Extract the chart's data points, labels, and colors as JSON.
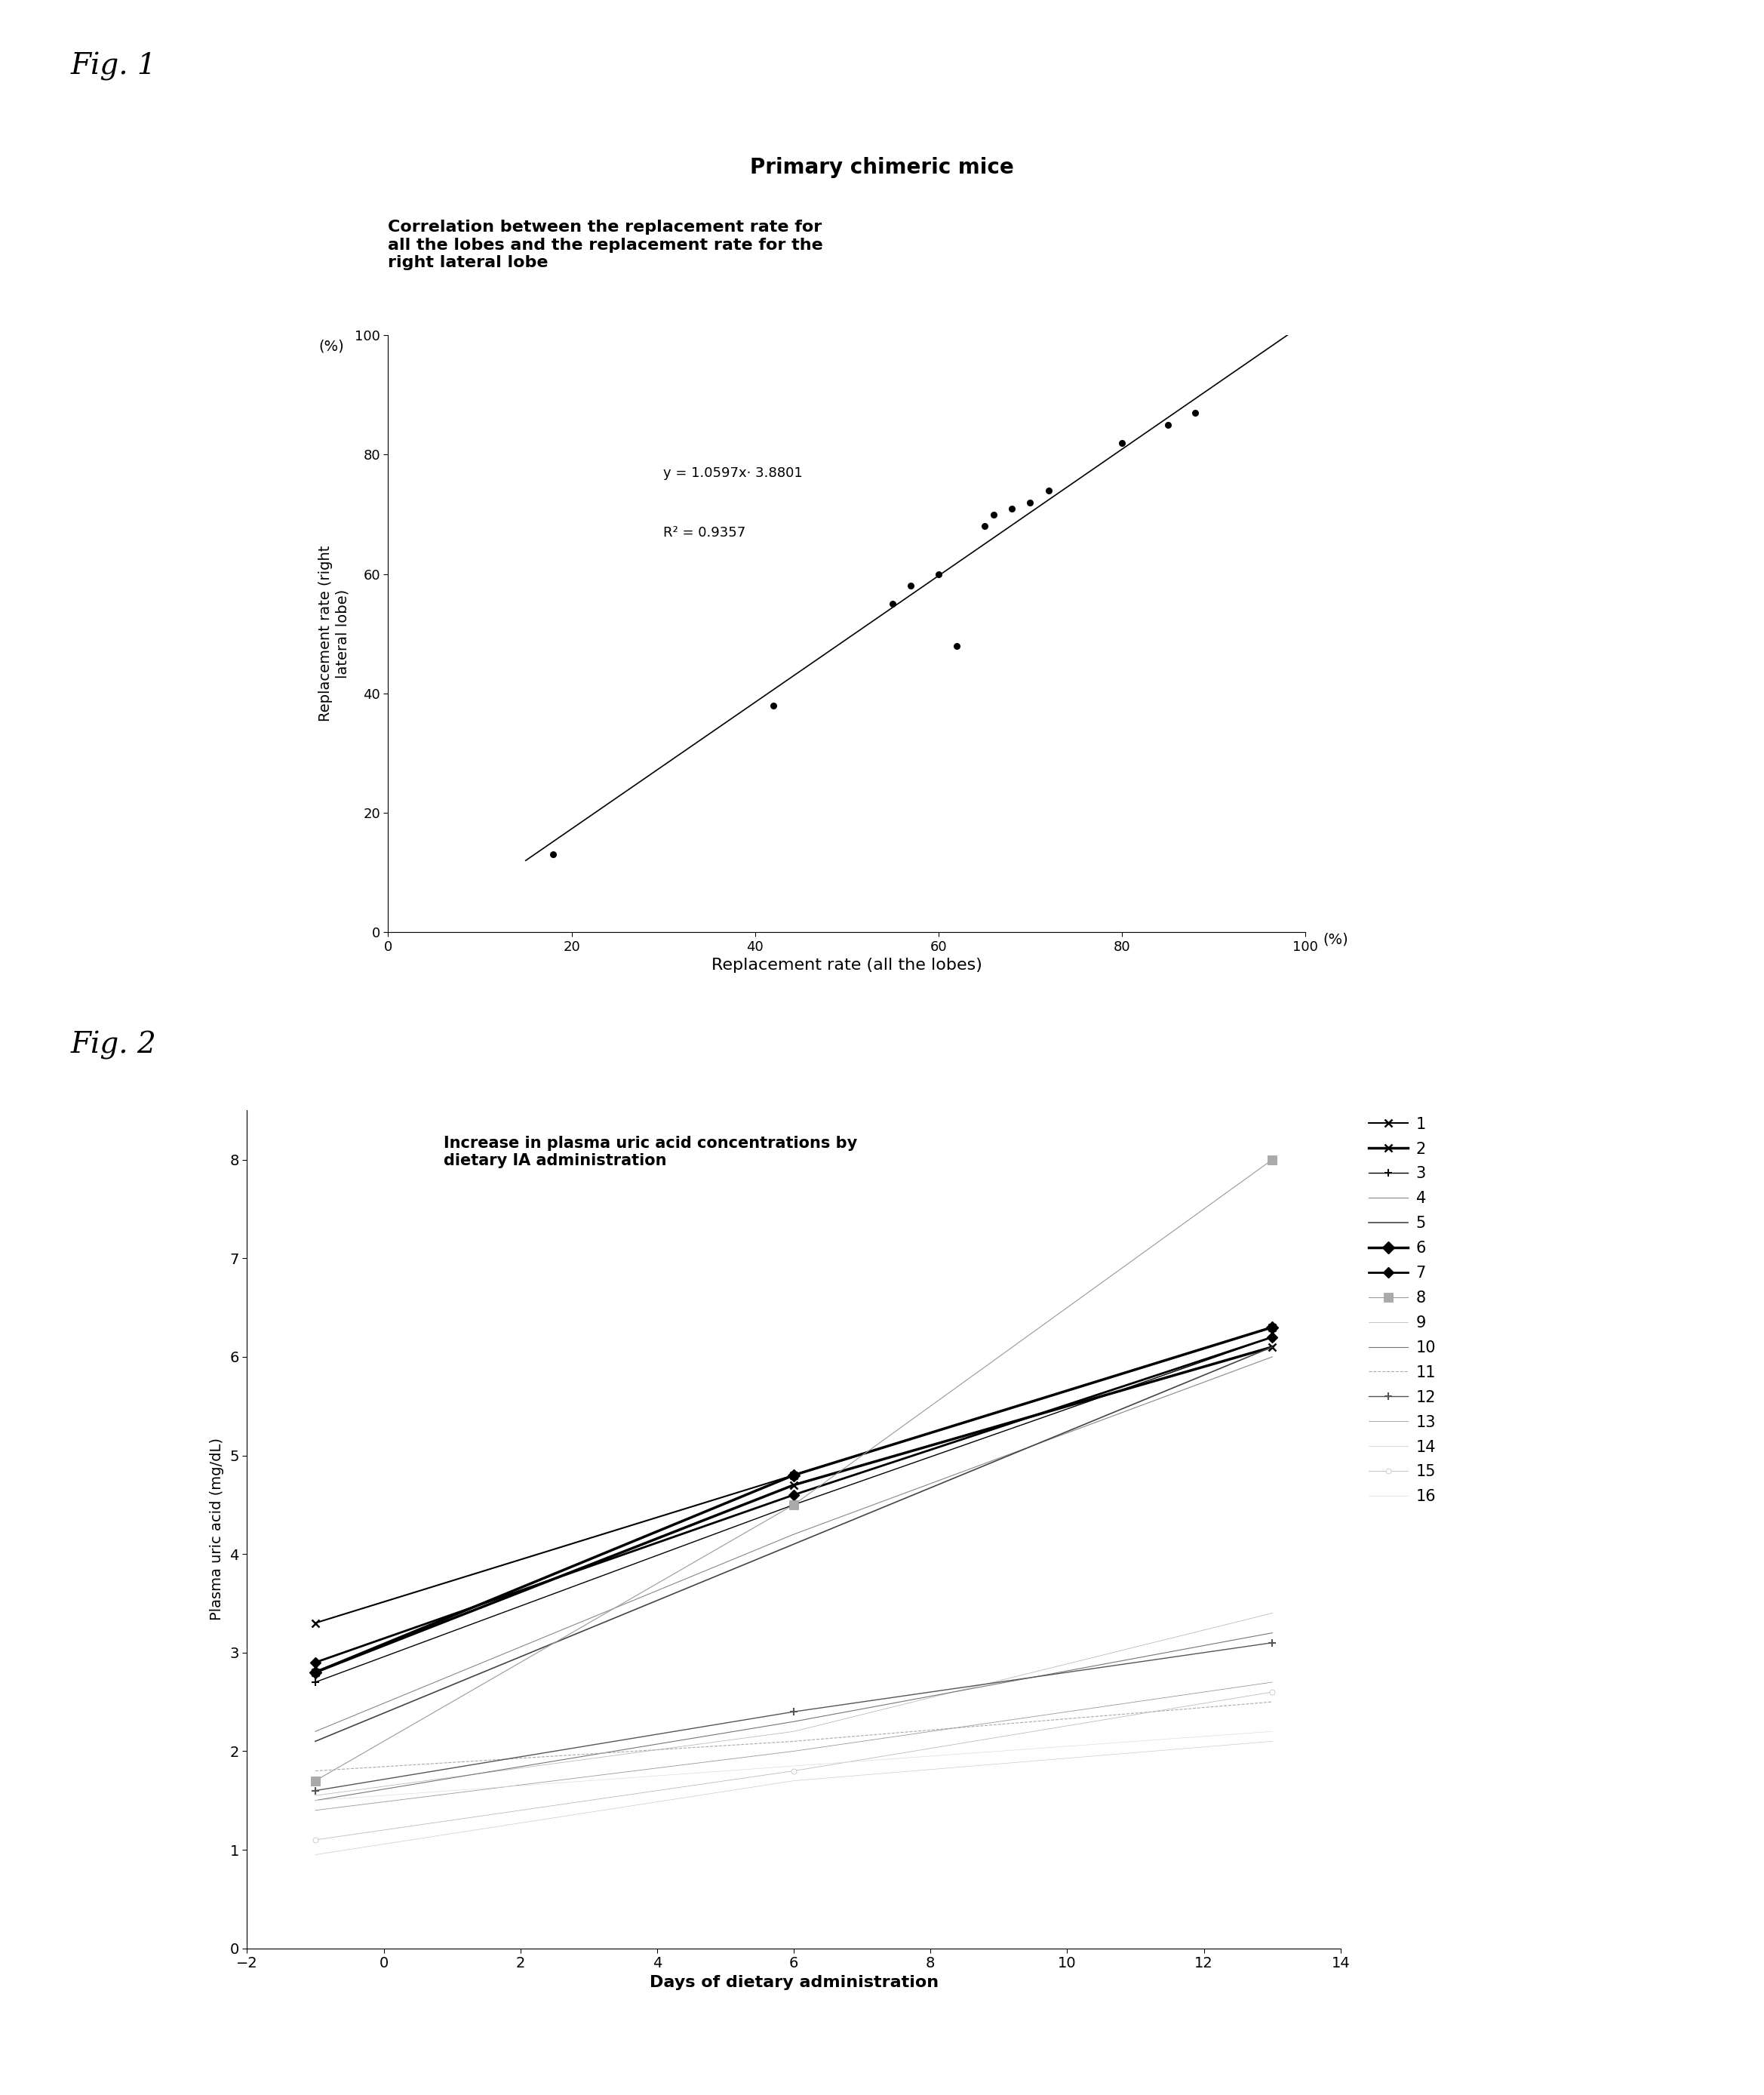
{
  "fig1": {
    "title_main": "Primary chimeric mice",
    "title_sub": "Correlation between the replacement rate for\nall the lobes and the replacement rate for the\nright lateral lobe",
    "xlabel": "Replacement rate (all the lobes)",
    "ylabel": "Replacement rate (right\nlateral lobe)",
    "equation": "y = 1.0597x· 3.8801",
    "r2": "R² = 0.9357",
    "scatter_x": [
      18,
      42,
      55,
      57,
      60,
      62,
      65,
      66,
      68,
      70,
      72,
      80,
      85,
      88
    ],
    "scatter_y": [
      13,
      38,
      55,
      58,
      60,
      48,
      68,
      70,
      71,
      72,
      74,
      82,
      85,
      87
    ],
    "xlim": [
      0,
      100
    ],
    "ylim": [
      0,
      100
    ],
    "xticks": [
      0,
      20,
      40,
      60,
      80,
      100
    ],
    "yticks": [
      0,
      20,
      40,
      60,
      80,
      100
    ],
    "slope": 1.0597,
    "intercept": -3.8801
  },
  "fig2": {
    "title": "Increase in plasma uric acid concentrations by\ndietary IA administration",
    "xlabel": "Days of dietary administration",
    "ylabel": "Plasma uric acid (mg/dL)",
    "xlim": [
      -2,
      14
    ],
    "ylim": [
      0.0,
      8.5
    ],
    "xticks": [
      -2,
      0,
      2,
      4,
      6,
      8,
      10,
      12,
      14
    ],
    "yticks": [
      0.0,
      1.0,
      2.0,
      3.0,
      4.0,
      5.0,
      6.0,
      7.0,
      8.0
    ],
    "series": [
      {
        "id": 1,
        "x": [
          -1,
          6,
          13
        ],
        "y": [
          3.3,
          4.8,
          6.3
        ],
        "color": "#000000",
        "lw": 1.5,
        "ls": "-",
        "marker": "x",
        "ms": 7,
        "mew": 1.8,
        "mfc": "#000000"
      },
      {
        "id": 2,
        "x": [
          -1,
          6,
          13
        ],
        "y": [
          2.8,
          4.7,
          6.1
        ],
        "color": "#000000",
        "lw": 2.5,
        "ls": "-",
        "marker": "x",
        "ms": 7,
        "mew": 1.8,
        "mfc": "#000000"
      },
      {
        "id": 3,
        "x": [
          -1,
          6,
          13
        ],
        "y": [
          2.7,
          4.5,
          6.2
        ],
        "color": "#000000",
        "lw": 1.0,
        "ls": "-",
        "marker": "+",
        "ms": 7,
        "mew": 1.5,
        "mfc": "#000000"
      },
      {
        "id": 4,
        "x": [
          -1,
          6,
          13
        ],
        "y": [
          2.2,
          4.2,
          6.0
        ],
        "color": "#888888",
        "lw": 0.8,
        "ls": "-",
        "marker": null,
        "ms": 0,
        "mew": 0,
        "mfc": null
      },
      {
        "id": 5,
        "x": [
          -1,
          6,
          13
        ],
        "y": [
          2.1,
          4.1,
          6.1
        ],
        "color": "#444444",
        "lw": 1.2,
        "ls": "-",
        "marker": null,
        "ms": 0,
        "mew": 0,
        "mfc": null
      },
      {
        "id": 6,
        "x": [
          -1,
          6,
          13
        ],
        "y": [
          2.8,
          4.8,
          6.3
        ],
        "color": "#000000",
        "lw": 2.5,
        "ls": "-",
        "marker": "D",
        "ms": 8,
        "mew": 1.0,
        "mfc": "#000000"
      },
      {
        "id": 7,
        "x": [
          -1,
          6,
          13
        ],
        "y": [
          2.9,
          4.6,
          6.2
        ],
        "color": "#000000",
        "lw": 2.0,
        "ls": "-",
        "marker": "D",
        "ms": 7,
        "mew": 1.0,
        "mfc": "#000000"
      },
      {
        "id": 8,
        "x": [
          -1,
          6,
          13
        ],
        "y": [
          1.7,
          4.5,
          8.0
        ],
        "color": "#999999",
        "lw": 0.8,
        "ls": "-",
        "marker": "s",
        "ms": 9,
        "mew": 0.5,
        "mfc": "#aaaaaa"
      },
      {
        "id": 9,
        "x": [
          -1,
          6,
          13
        ],
        "y": [
          1.55,
          2.2,
          3.4
        ],
        "color": "#bbbbbb",
        "lw": 0.6,
        "ls": "-",
        "marker": null,
        "ms": 0,
        "mew": 0,
        "mfc": null
      },
      {
        "id": 10,
        "x": [
          -1,
          6,
          13
        ],
        "y": [
          1.5,
          2.3,
          3.2
        ],
        "color": "#777777",
        "lw": 0.8,
        "ls": "-",
        "marker": null,
        "ms": 0,
        "mew": 0,
        "mfc": null
      },
      {
        "id": 11,
        "x": [
          -1,
          6,
          13
        ],
        "y": [
          1.8,
          2.1,
          2.5
        ],
        "color": "#aaaaaa",
        "lw": 0.8,
        "ls": "--",
        "marker": null,
        "ms": 0,
        "mew": 0,
        "mfc": null
      },
      {
        "id": 12,
        "x": [
          -1,
          6,
          13
        ],
        "y": [
          1.6,
          2.4,
          3.1
        ],
        "color": "#555555",
        "lw": 1.0,
        "ls": "-",
        "marker": "+",
        "ms": 7,
        "mew": 1.5,
        "mfc": "#555555"
      },
      {
        "id": 13,
        "x": [
          -1,
          6,
          13
        ],
        "y": [
          1.4,
          2.0,
          2.7
        ],
        "color": "#999999",
        "lw": 0.6,
        "ls": "-",
        "marker": null,
        "ms": 0,
        "mew": 0,
        "mfc": null
      },
      {
        "id": 14,
        "x": [
          -1,
          6,
          13
        ],
        "y": [
          0.95,
          1.7,
          2.1
        ],
        "color": "#cccccc",
        "lw": 0.5,
        "ls": "-",
        "marker": null,
        "ms": 0,
        "mew": 0,
        "mfc": null
      },
      {
        "id": 15,
        "x": [
          -1,
          6,
          13
        ],
        "y": [
          1.1,
          1.8,
          2.6
        ],
        "color": "#bbbbbb",
        "lw": 0.6,
        "ls": "-",
        "marker": "o",
        "ms": 5,
        "mew": 0.5,
        "mfc": "white"
      },
      {
        "id": 16,
        "x": [
          -1,
          6,
          13
        ],
        "y": [
          1.5,
          1.85,
          2.2
        ],
        "color": "#dddddd",
        "lw": 0.5,
        "ls": "-",
        "marker": null,
        "ms": 0,
        "mew": 0,
        "mfc": null
      }
    ]
  }
}
